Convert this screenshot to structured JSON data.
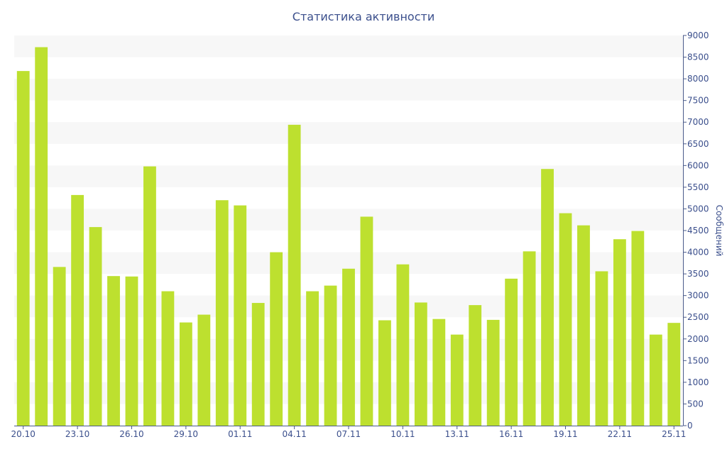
{
  "chart_data": {
    "type": "bar",
    "title": "Статистика активности",
    "xlabel": "",
    "ylabel": "Сообщений",
    "ylim": [
      0,
      9000
    ],
    "y_ticks": [
      0,
      500,
      1000,
      1500,
      2000,
      2500,
      3000,
      3500,
      4000,
      4500,
      5000,
      5500,
      6000,
      6500,
      7000,
      7500,
      8000,
      8500,
      9000
    ],
    "categories": [
      "20.10",
      "21.10",
      "22.10",
      "23.10",
      "24.10",
      "25.10",
      "26.10",
      "27.10",
      "28.10",
      "29.10",
      "30.10",
      "31.10",
      "01.11",
      "02.11",
      "03.11",
      "04.11",
      "05.11",
      "06.11",
      "07.11",
      "08.11",
      "09.11",
      "10.11",
      "11.11",
      "12.11",
      "13.11",
      "14.11",
      "15.11",
      "16.11",
      "17.11",
      "18.11",
      "19.11",
      "20.11",
      "21.11",
      "22.11",
      "23.11",
      "24.11",
      "25.11"
    ],
    "x_tick_labels": [
      "20.10",
      "23.10",
      "26.10",
      "29.10",
      "01.11",
      "04.11",
      "07.11",
      "10.11",
      "13.11",
      "16.11",
      "19.11",
      "22.11",
      "25.11"
    ],
    "values": [
      8180,
      8730,
      3660,
      5320,
      4580,
      3450,
      3440,
      5980,
      3100,
      2380,
      2560,
      5200,
      5080,
      2830,
      4000,
      6940,
      3100,
      3230,
      3620,
      4820,
      2430,
      3720,
      2840,
      2460,
      2100,
      2780,
      2440,
      3390,
      4020,
      5920,
      4900,
      4620,
      3560,
      4300,
      4490,
      2100,
      2370
    ],
    "grid": "alternating horizontal bands",
    "colors": {
      "bar": "#bde02f",
      "band": "#f7f7f7",
      "axis": "#4a5a8a",
      "text": "#3b4f8c"
    }
  }
}
